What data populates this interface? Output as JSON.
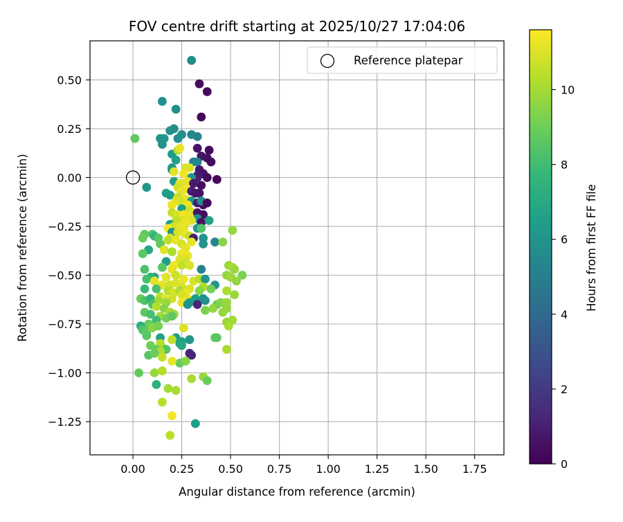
{
  "chart_data": {
    "type": "scatter",
    "title": "FOV centre drift starting at 2025/10/27 17:04:06",
    "xlabel": "Angular distance from reference (arcmin)",
    "ylabel": "Rotation from reference (arcmin)",
    "xlim": [
      -0.22,
      1.9
    ],
    "ylim": [
      -1.42,
      0.7
    ],
    "xticks": [
      0.0,
      0.25,
      0.5,
      0.75,
      1.0,
      1.25,
      1.5,
      1.75
    ],
    "xtick_labels": [
      "0.00",
      "0.25",
      "0.50",
      "0.75",
      "1.00",
      "1.25",
      "1.50",
      "1.75"
    ],
    "yticks": [
      0.5,
      0.25,
      0.0,
      -0.25,
      -0.5,
      -0.75,
      -1.0,
      -1.25
    ],
    "ytick_labels": [
      "0.50",
      "0.25",
      "0.00",
      "−0.25",
      "−0.50",
      "−0.75",
      "−1.00",
      "−1.25"
    ],
    "grid": true,
    "legend": {
      "label": "Reference platepar",
      "position": "top-right",
      "marker": "hollow-circle"
    },
    "reference_point": {
      "x": 0.0,
      "y": 0.0
    },
    "colorbar": {
      "label": "Hours from first FF file",
      "range": [
        0,
        11.6
      ],
      "ticks": [
        0,
        2,
        4,
        6,
        8,
        10
      ],
      "tick_labels": [
        "0",
        "2",
        "4",
        "6",
        "8",
        "10"
      ],
      "colormap": "viridis",
      "colormap_stops": [
        "#440154",
        "#482878",
        "#3e4989",
        "#31688e",
        "#26828e",
        "#1f9e89",
        "#35b779",
        "#6ece58",
        "#b5de2b",
        "#fde725"
      ]
    },
    "points": [
      [
        0.3,
        0.6,
        5.6
      ],
      [
        0.34,
        0.48,
        0.4
      ],
      [
        0.38,
        0.44,
        0.3
      ],
      [
        0.15,
        0.39,
        5.8
      ],
      [
        0.22,
        0.35,
        5.6
      ],
      [
        0.35,
        0.31,
        0.2
      ],
      [
        0.21,
        0.25,
        5.7
      ],
      [
        0.19,
        0.24,
        5.9
      ],
      [
        0.3,
        0.22,
        5.4
      ],
      [
        0.25,
        0.22,
        5.8
      ],
      [
        0.33,
        0.21,
        5.2
      ],
      [
        0.16,
        0.2,
        6.3
      ],
      [
        0.14,
        0.2,
        6.0
      ],
      [
        0.01,
        0.2,
        8.7
      ],
      [
        0.23,
        0.2,
        5.8
      ],
      [
        0.15,
        0.17,
        5.9
      ],
      [
        0.2,
        0.12,
        6.2
      ],
      [
        0.33,
        0.15,
        0.6
      ],
      [
        0.39,
        0.14,
        0.3
      ],
      [
        0.23,
        0.14,
        10.2
      ],
      [
        0.24,
        0.15,
        11.2
      ],
      [
        0.35,
        0.11,
        0.7
      ],
      [
        0.38,
        0.1,
        0.5
      ],
      [
        0.22,
        0.09,
        6.6
      ],
      [
        0.31,
        0.08,
        5.1
      ],
      [
        0.33,
        0.08,
        5.3
      ],
      [
        0.4,
        0.08,
        0.3
      ],
      [
        0.2,
        0.05,
        6.1
      ],
      [
        0.2,
        0.04,
        6.2
      ],
      [
        0.27,
        0.05,
        10.9
      ],
      [
        0.29,
        0.05,
        11.0
      ],
      [
        0.34,
        0.04,
        0.8
      ],
      [
        0.36,
        0.02,
        0.6
      ],
      [
        0.21,
        0.03,
        11.1
      ],
      [
        0.26,
        0.02,
        11.3
      ],
      [
        0.33,
        0.01,
        0.9
      ],
      [
        0.33,
        0.0,
        1.0
      ],
      [
        0.3,
        0.0,
        6.0
      ],
      [
        0.38,
        0.0,
        0.4
      ],
      [
        0.43,
        -0.01,
        0.2
      ],
      [
        0.21,
        -0.02,
        6.4
      ],
      [
        0.24,
        -0.03,
        11.2
      ],
      [
        0.26,
        -0.03,
        11.0
      ],
      [
        0.28,
        -0.02,
        11.1
      ],
      [
        0.31,
        -0.03,
        0.9
      ],
      [
        0.35,
        -0.04,
        0.5
      ],
      [
        0.07,
        -0.05,
        6.1
      ],
      [
        0.23,
        -0.05,
        10.8
      ],
      [
        0.27,
        -0.06,
        11.4
      ],
      [
        0.25,
        -0.07,
        11.2
      ],
      [
        0.3,
        -0.07,
        1.1
      ],
      [
        0.32,
        -0.08,
        0.7
      ],
      [
        0.34,
        -0.08,
        0.6
      ],
      [
        0.17,
        -0.08,
        6.6
      ],
      [
        0.19,
        -0.09,
        6.3
      ],
      [
        0.23,
        -0.1,
        10.7
      ],
      [
        0.27,
        -0.11,
        11.2
      ],
      [
        0.3,
        -0.12,
        6.2
      ],
      [
        0.33,
        -0.13,
        0.9
      ],
      [
        0.36,
        -0.14,
        0.4
      ],
      [
        0.22,
        -0.12,
        11.0
      ],
      [
        0.25,
        -0.13,
        10.9
      ],
      [
        0.28,
        -0.14,
        11.3
      ],
      [
        0.2,
        -0.14,
        11.3
      ],
      [
        0.35,
        -0.12,
        5.7
      ],
      [
        0.38,
        -0.13,
        0.3
      ],
      [
        0.25,
        -0.16,
        6.5
      ],
      [
        0.29,
        -0.17,
        10.8
      ],
      [
        0.31,
        -0.18,
        11.1
      ],
      [
        0.33,
        -0.18,
        0.7
      ],
      [
        0.2,
        -0.18,
        10.6
      ],
      [
        0.23,
        -0.19,
        11.0
      ],
      [
        0.26,
        -0.19,
        11.4
      ],
      [
        0.28,
        -0.2,
        11.2
      ],
      [
        0.36,
        -0.19,
        0.5
      ],
      [
        0.33,
        -0.21,
        5.8
      ],
      [
        0.25,
        -0.22,
        10.9
      ],
      [
        0.22,
        -0.22,
        10.5
      ],
      [
        0.3,
        -0.22,
        11.0
      ],
      [
        0.27,
        -0.23,
        11.3
      ],
      [
        0.35,
        -0.23,
        0.6
      ],
      [
        0.39,
        -0.22,
        6.6
      ],
      [
        0.19,
        -0.24,
        6.2
      ],
      [
        0.21,
        -0.25,
        10.8
      ],
      [
        0.24,
        -0.25,
        11.1
      ],
      [
        0.26,
        -0.26,
        11.2
      ],
      [
        0.33,
        -0.26,
        6.0
      ],
      [
        0.35,
        -0.26,
        8.4
      ],
      [
        0.18,
        -0.26,
        11.4
      ],
      [
        0.2,
        -0.28,
        6.1
      ],
      [
        0.23,
        -0.28,
        11.0
      ],
      [
        0.27,
        -0.29,
        11.3
      ],
      [
        0.29,
        -0.3,
        10.5
      ],
      [
        0.31,
        -0.31,
        0.9
      ],
      [
        0.1,
        -0.29,
        8.5
      ],
      [
        0.06,
        -0.29,
        8.7
      ],
      [
        0.11,
        -0.3,
        7.6
      ],
      [
        0.13,
        -0.31,
        8.5
      ],
      [
        0.05,
        -0.31,
        8.9
      ],
      [
        0.19,
        -0.31,
        11.1
      ],
      [
        0.18,
        -0.32,
        10.4
      ],
      [
        0.22,
        -0.32,
        11.2
      ],
      [
        0.3,
        -0.33,
        11.2
      ],
      [
        0.36,
        -0.31,
        6.1
      ],
      [
        0.42,
        -0.33,
        5.4
      ],
      [
        0.46,
        -0.33,
        9.5
      ],
      [
        0.51,
        -0.27,
        9.7
      ],
      [
        0.14,
        -0.34,
        8.8
      ],
      [
        0.25,
        -0.34,
        10.9
      ],
      [
        0.27,
        -0.36,
        11.1
      ],
      [
        0.36,
        -0.34,
        6.0
      ],
      [
        0.08,
        -0.37,
        7.0
      ],
      [
        0.05,
        -0.39,
        8.6
      ],
      [
        0.16,
        -0.37,
        11.1
      ],
      [
        0.2,
        -0.38,
        10.2
      ],
      [
        0.25,
        -0.39,
        11.3
      ],
      [
        0.28,
        -0.4,
        11.2
      ],
      [
        0.17,
        -0.43,
        6.5
      ],
      [
        0.24,
        -0.42,
        11.0
      ],
      [
        0.27,
        -0.43,
        10.8
      ],
      [
        0.21,
        -0.45,
        11.4
      ],
      [
        0.25,
        -0.45,
        10.6
      ],
      [
        0.29,
        -0.45,
        11.0
      ],
      [
        0.15,
        -0.46,
        8.6
      ],
      [
        0.2,
        -0.47,
        11.2
      ],
      [
        0.06,
        -0.47,
        8.3
      ],
      [
        0.35,
        -0.47,
        5.2
      ],
      [
        0.49,
        -0.45,
        9.8
      ],
      [
        0.51,
        -0.46,
        10.1
      ],
      [
        0.52,
        -0.47,
        9.8
      ],
      [
        0.48,
        -0.5,
        9.6
      ],
      [
        0.56,
        -0.5,
        9.3
      ],
      [
        0.5,
        -0.51,
        9.9
      ],
      [
        0.53,
        -0.53,
        9.7
      ],
      [
        0.11,
        -0.51,
        6.9
      ],
      [
        0.09,
        -0.51,
        7.4
      ],
      [
        0.17,
        -0.51,
        11.1
      ],
      [
        0.22,
        -0.5,
        10.7
      ],
      [
        0.26,
        -0.52,
        11.3
      ],
      [
        0.31,
        -0.53,
        10.9
      ],
      [
        0.34,
        -0.52,
        10.4
      ],
      [
        0.37,
        -0.52,
        6.0
      ],
      [
        0.07,
        -0.52,
        8.1
      ],
      [
        0.11,
        -0.53,
        11.1
      ],
      [
        0.15,
        -0.55,
        11.2
      ],
      [
        0.19,
        -0.55,
        10.8
      ],
      [
        0.22,
        -0.54,
        11.0
      ],
      [
        0.25,
        -0.56,
        10.9
      ],
      [
        0.29,
        -0.57,
        11.0
      ],
      [
        0.36,
        -0.56,
        10.2
      ],
      [
        0.42,
        -0.55,
        6.2
      ],
      [
        0.06,
        -0.57,
        7.8
      ],
      [
        0.12,
        -0.57,
        8.2
      ],
      [
        0.18,
        -0.58,
        10.3
      ],
      [
        0.21,
        -0.59,
        10.9
      ],
      [
        0.24,
        -0.58,
        10.1
      ],
      [
        0.27,
        -0.59,
        11.3
      ],
      [
        0.34,
        -0.58,
        9.4
      ],
      [
        0.4,
        -0.57,
        9.1
      ],
      [
        0.48,
        -0.58,
        10.2
      ],
      [
        0.52,
        -0.6,
        9.8
      ],
      [
        0.14,
        -0.61,
        10.4
      ],
      [
        0.16,
        -0.62,
        11.1
      ],
      [
        0.2,
        -0.62,
        10.8
      ],
      [
        0.25,
        -0.6,
        10.9
      ],
      [
        0.28,
        -0.62,
        11.2
      ],
      [
        0.32,
        -0.62,
        6.4
      ],
      [
        0.36,
        -0.62,
        6.0
      ],
      [
        0.04,
        -0.62,
        8.9
      ],
      [
        0.06,
        -0.63,
        8.3
      ],
      [
        0.09,
        -0.62,
        7.5
      ],
      [
        0.13,
        -0.63,
        10.0
      ],
      [
        0.17,
        -0.64,
        9.8
      ],
      [
        0.25,
        -0.64,
        11.3
      ],
      [
        0.29,
        -0.64,
        6.5
      ],
      [
        0.33,
        -0.65,
        1.3
      ],
      [
        0.37,
        -0.63,
        5.8
      ],
      [
        0.43,
        -0.65,
        8.9
      ],
      [
        0.45,
        -0.64,
        9.4
      ],
      [
        0.48,
        -0.64,
        9.8
      ],
      [
        0.48,
        -0.67,
        9.7
      ],
      [
        0.41,
        -0.67,
        9.7
      ],
      [
        0.46,
        -0.69,
        9.8
      ],
      [
        0.37,
        -0.68,
        9.3
      ],
      [
        0.1,
        -0.65,
        8.2
      ],
      [
        0.12,
        -0.66,
        10.3
      ],
      [
        0.16,
        -0.67,
        9.5
      ],
      [
        0.19,
        -0.69,
        10.1
      ],
      [
        0.21,
        -0.7,
        9.8
      ],
      [
        0.28,
        -0.65,
        6.0
      ],
      [
        0.06,
        -0.69,
        8.7
      ],
      [
        0.09,
        -0.7,
        8.2
      ],
      [
        0.14,
        -0.71,
        10.0
      ],
      [
        0.17,
        -0.72,
        9.1
      ],
      [
        0.2,
        -0.71,
        8.7
      ],
      [
        0.12,
        -0.73,
        8.0
      ],
      [
        0.08,
        -0.75,
        8.9
      ],
      [
        0.04,
        -0.76,
        7.3
      ],
      [
        0.05,
        -0.78,
        8.4
      ],
      [
        0.07,
        -0.79,
        8.7
      ],
      [
        0.1,
        -0.77,
        9.5
      ],
      [
        0.13,
        -0.76,
        9.2
      ],
      [
        0.07,
        -0.81,
        8.6
      ],
      [
        0.48,
        -0.74,
        9.8
      ],
      [
        0.51,
        -0.73,
        9.9
      ],
      [
        0.49,
        -0.76,
        10.1
      ],
      [
        0.26,
        -0.77,
        11.0
      ],
      [
        0.14,
        -0.82,
        6.6
      ],
      [
        0.22,
        -0.82,
        6.5
      ],
      [
        0.25,
        -0.84,
        6.8
      ],
      [
        0.29,
        -0.83,
        6.0
      ],
      [
        0.42,
        -0.82,
        8.7
      ],
      [
        0.43,
        -0.82,
        8.6
      ],
      [
        0.2,
        -0.83,
        10.5
      ],
      [
        0.14,
        -0.85,
        10.4
      ],
      [
        0.15,
        -0.87,
        10.2
      ],
      [
        0.24,
        -0.85,
        6.6
      ],
      [
        0.25,
        -0.86,
        6.9
      ],
      [
        0.09,
        -0.86,
        9.0
      ],
      [
        0.12,
        -0.88,
        8.8
      ],
      [
        0.17,
        -0.88,
        8.5
      ],
      [
        0.48,
        -0.88,
        10.1
      ],
      [
        0.29,
        -0.9,
        1.3
      ],
      [
        0.3,
        -0.91,
        1.2
      ],
      [
        0.14,
        -0.89,
        10.2
      ],
      [
        0.08,
        -0.91,
        8.5
      ],
      [
        0.11,
        -0.9,
        8.9
      ],
      [
        0.15,
        -0.92,
        10.6
      ],
      [
        0.24,
        -0.95,
        8.8
      ],
      [
        0.27,
        -0.94,
        9.5
      ],
      [
        0.2,
        -0.94,
        11.2
      ],
      [
        0.03,
        -1.0,
        8.8
      ],
      [
        0.11,
        -1.0,
        9.8
      ],
      [
        0.15,
        -0.99,
        10.3
      ],
      [
        0.3,
        -1.03,
        10.1
      ],
      [
        0.36,
        -1.02,
        9.8
      ],
      [
        0.38,
        -1.04,
        8.9
      ],
      [
        0.12,
        -1.06,
        7.4
      ],
      [
        0.18,
        -1.08,
        10.0
      ],
      [
        0.22,
        -1.09,
        10.1
      ],
      [
        0.15,
        -1.15,
        10.4
      ],
      [
        0.2,
        -1.22,
        11.4
      ],
      [
        0.32,
        -1.26,
        6.5
      ],
      [
        0.19,
        -1.32,
        10.4
      ]
    ]
  }
}
